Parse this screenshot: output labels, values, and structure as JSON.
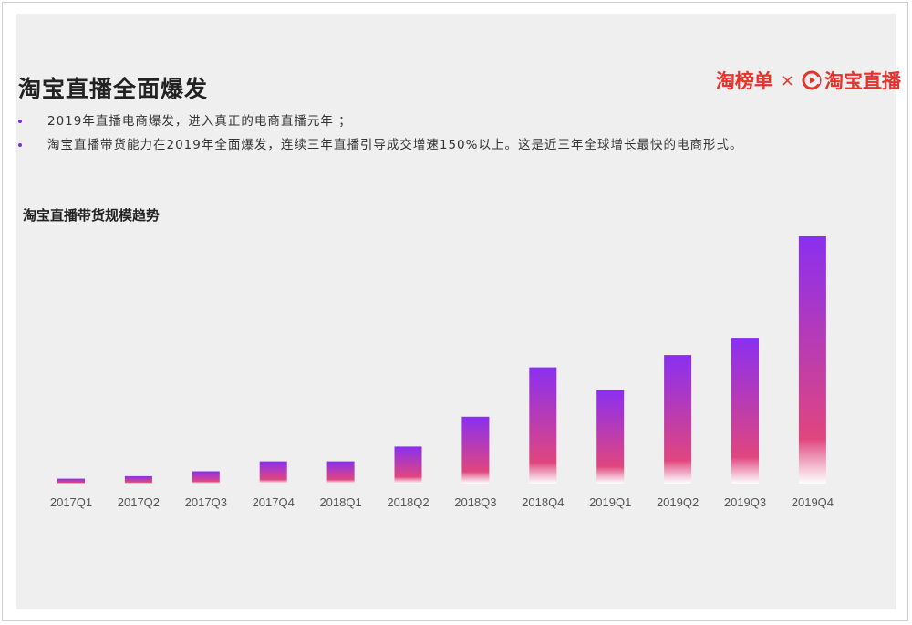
{
  "slide": {
    "title": "淘宝直播全面爆发",
    "bullets": [
      "2019年直播电商爆发，进入真正的电商直播元年 ；",
      "淘宝直播带货能力在2019年全面爆发，连续三年直播引导成交增速150%以上。这是近三年全球增长最快的电商形式。"
    ],
    "bullet_color": "#7a2fd6"
  },
  "logos": {
    "taobangdan": "淘榜单",
    "separator": "×",
    "taobao_live": "淘宝直播",
    "brand_color": "#e5322d"
  },
  "chart_data": {
    "type": "bar",
    "title": "淘宝直播带货规模趋势",
    "xlabel": "",
    "ylabel": "",
    "categories": [
      "2017Q1",
      "2017Q2",
      "2017Q3",
      "2017Q4",
      "2018Q1",
      "2018Q2",
      "2018Q3",
      "2018Q4",
      "2019Q1",
      "2019Q2",
      "2019Q3",
      "2019Q4"
    ],
    "values": [
      2,
      3,
      5,
      9,
      9,
      15,
      27,
      47,
      38,
      52,
      59,
      100
    ],
    "ylim": [
      0,
      100
    ],
    "grid": false,
    "legend": "none",
    "bar_gradient": {
      "top": "#8a2ff0",
      "middle": "#e0467e",
      "bottom": "#ffffff"
    }
  }
}
